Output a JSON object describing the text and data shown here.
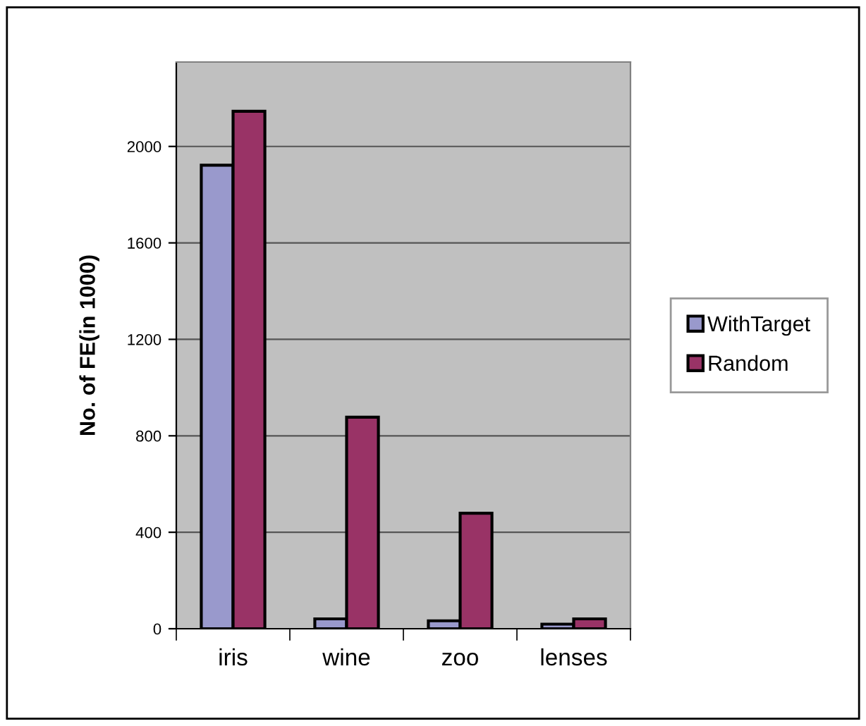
{
  "chart_data": {
    "type": "bar",
    "ylabel": "No. of FE(in 1000)",
    "categories": [
      "iris",
      "wine",
      "zoo",
      "lenses"
    ],
    "series": [
      {
        "name": "WithTarget",
        "color": "#9999cc",
        "values": [
          1922,
          41,
          33,
          19
        ]
      },
      {
        "name": "Random",
        "color": "#993366",
        "values": [
          2146,
          877,
          479,
          41
        ]
      }
    ],
    "ylim": [
      0,
      2350
    ],
    "yticks": [
      0,
      400,
      800,
      1200,
      1600,
      2000
    ],
    "grid": "y",
    "legend": "right"
  }
}
